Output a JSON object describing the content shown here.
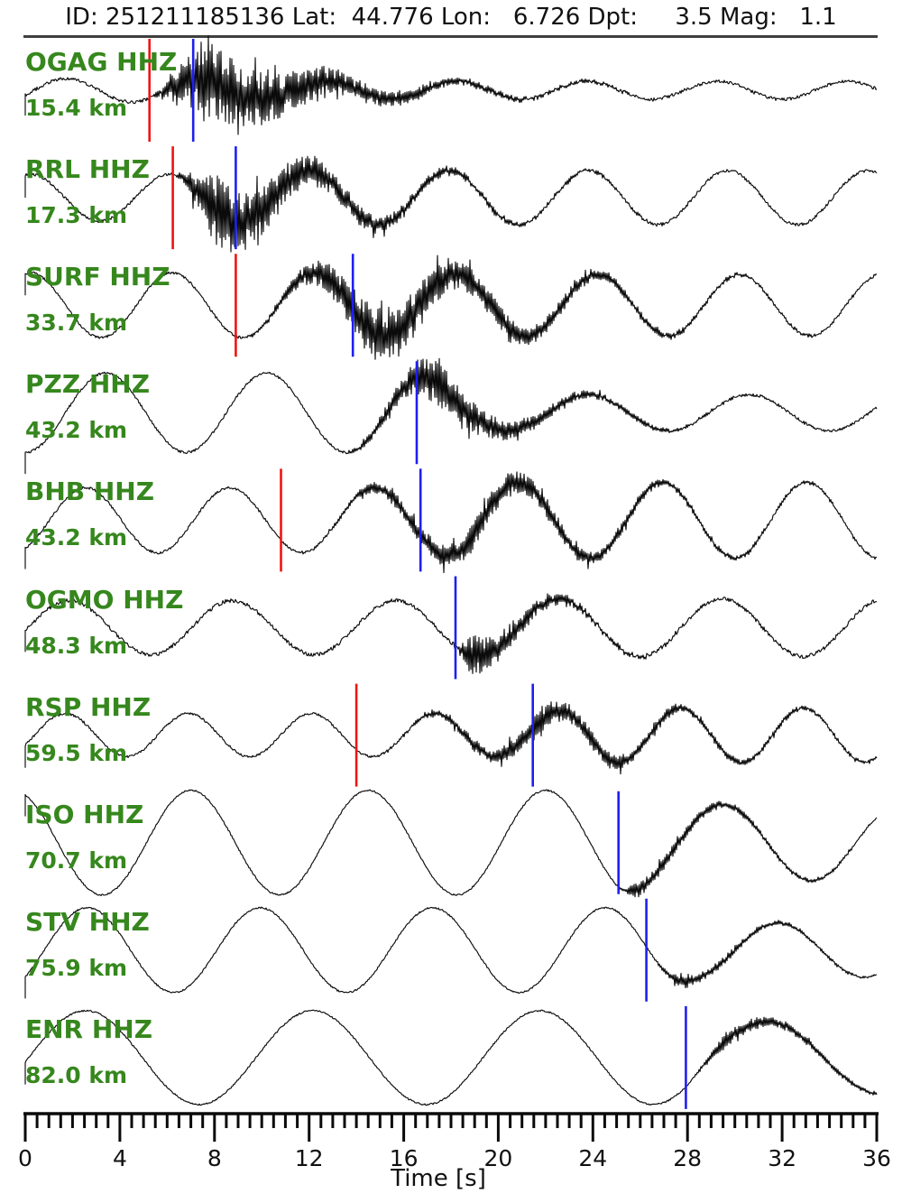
{
  "header": {
    "title": "ID: 251211185136 Lat:  44.776 Lon:   6.726 Dpt:     3.5 Mag:   1.1"
  },
  "event": {
    "id": "251211185136",
    "lat": "44.776",
    "lon": "6.726",
    "depth_km": "3.5",
    "magnitude": "1.1"
  },
  "axis": {
    "label": "Time [s]"
  },
  "colors": {
    "station_label": "#36871d",
    "trace": "#0b0b0b",
    "p_pick_red": "#ee1511",
    "s_pick_blue": "#1f1ff0",
    "axis_black": "#0a0a0a",
    "header_line": "#3f3f3f"
  },
  "chart_data": {
    "type": "line",
    "title": "ID: 251211185136 Lat: 44.776 Lon: 6.726 Dpt: 3.5 Mag: 1.1",
    "xlabel": "Time [s]",
    "xlim": [
      0,
      36
    ],
    "x_major_ticks": [
      0,
      4,
      8,
      12,
      16,
      20,
      24,
      28,
      32,
      36
    ],
    "x_minor_step": 0.5,
    "grid": false,
    "legend": "none",
    "traces": [
      {
        "station": "OGAG HHZ",
        "distance": "15.4 km",
        "distance_km": 15.4,
        "p_pick_s": 5.25,
        "s_pick_s": 7.1,
        "lp_pre": 13,
        "lp_post": 10,
        "lp_period": 5.5,
        "lp_phase": -0.43,
        "hf_amp": 52,
        "hf_start": 5.25,
        "hf_peak": 7.6,
        "hf_decay": 4.2,
        "fuzz": 0.9
      },
      {
        "station": "RRL HHZ",
        "distance": "17.3 km",
        "distance_km": 17.3,
        "p_pick_s": 6.24,
        "s_pick_s": 8.9,
        "lp_pre": 26,
        "lp_post": 30,
        "lp_period": 5.9,
        "lp_phase": 1.35,
        "hf_amp": 42,
        "hf_start": 6.24,
        "hf_peak": 7.9,
        "hf_decay": 4.5,
        "fuzz": 0.8
      },
      {
        "station": "SURF HHZ",
        "distance": "33.7 km",
        "distance_km": 33.7,
        "p_pick_s": 8.9,
        "s_pick_s": 13.85,
        "lp_pre": 36,
        "lp_post": 34,
        "lp_period": 6.0,
        "lp_phase": 1.36,
        "hf_amp": 34,
        "hf_start": 8.9,
        "hf_peak": 15.0,
        "hf_decay": 5.0,
        "fuzz": 0.7
      },
      {
        "station": "PZZ HHZ",
        "distance": "43.2 km",
        "distance_km": 43.2,
        "p_pick_s": null,
        "s_pick_s": 16.55,
        "lp_pre": 44,
        "lp_post": 20,
        "lp_period": 6.8,
        "lp_phase": -1.57,
        "hf_amp": 26,
        "hf_start": 13.2,
        "hf_peak": 17.2,
        "hf_decay": 3.6,
        "fuzz": 0.7
      },
      {
        "station": "BHB HHZ",
        "distance": "43.2 km",
        "distance_km": 43.2,
        "p_pick_s": 10.81,
        "s_pick_s": 16.71,
        "lp_pre": 36,
        "lp_post": 42,
        "lp_period": 6.1,
        "lp_phase": -1.05,
        "hf_amp": 17,
        "hf_start": 10.81,
        "hf_peak": 19.0,
        "hf_decay": 5.5,
        "fuzz": 0.7
      },
      {
        "station": "OGMO HHZ",
        "distance": "48.3 km",
        "distance_km": 48.3,
        "p_pick_s": null,
        "s_pick_s": 18.19,
        "lp_pre": 30,
        "lp_post": 32,
        "lp_period": 6.9,
        "lp_phase": -0.12,
        "hf_amp": 24,
        "hf_start": 18.0,
        "hf_peak": 18.9,
        "hf_decay": 2.6,
        "fuzz": 1.1
      },
      {
        "station": "RSP HHZ",
        "distance": "59.5 km",
        "distance_km": 59.5,
        "p_pick_s": 14.0,
        "s_pick_s": 21.46,
        "lp_pre": 24,
        "lp_post": 30,
        "lp_period": 5.2,
        "lp_phase": -0.48,
        "hf_amp": 13,
        "hf_start": 14.0,
        "hf_peak": 21.8,
        "hf_decay": 6.0,
        "fuzz": 0.7
      },
      {
        "station": "ISO HHZ",
        "distance": "70.7 km",
        "distance_km": 70.7,
        "p_pick_s": null,
        "s_pick_s": 25.08,
        "lp_pre": 58,
        "lp_post": 42,
        "lp_period": 7.5,
        "lp_phase": 1.99,
        "hf_amp": 9,
        "hf_start": 25.08,
        "hf_peak": 25.8,
        "hf_decay": 4.5,
        "fuzz": 0.45
      },
      {
        "station": "STV HHZ",
        "distance": "75.9 km",
        "distance_km": 75.9,
        "p_pick_s": null,
        "s_pick_s": 26.26,
        "lp_pre": 47,
        "lp_post": 30,
        "lp_period": 7.3,
        "lp_phase": -0.69,
        "hf_amp": 6,
        "hf_start": 26.26,
        "hf_peak": 27.6,
        "hf_decay": 4.5,
        "fuzz": 0.45
      },
      {
        "station": "ENR HHZ",
        "distance": "82.0 km",
        "distance_km": 82.0,
        "p_pick_s": null,
        "s_pick_s": 27.93,
        "lp_pre": 52,
        "lp_post": 40,
        "lp_period": 9.6,
        "lp_phase": -0.1,
        "hf_amp": 9,
        "hf_start": 27.93,
        "hf_peak": 29.6,
        "hf_decay": 4.0,
        "fuzz": 0.45
      }
    ]
  }
}
